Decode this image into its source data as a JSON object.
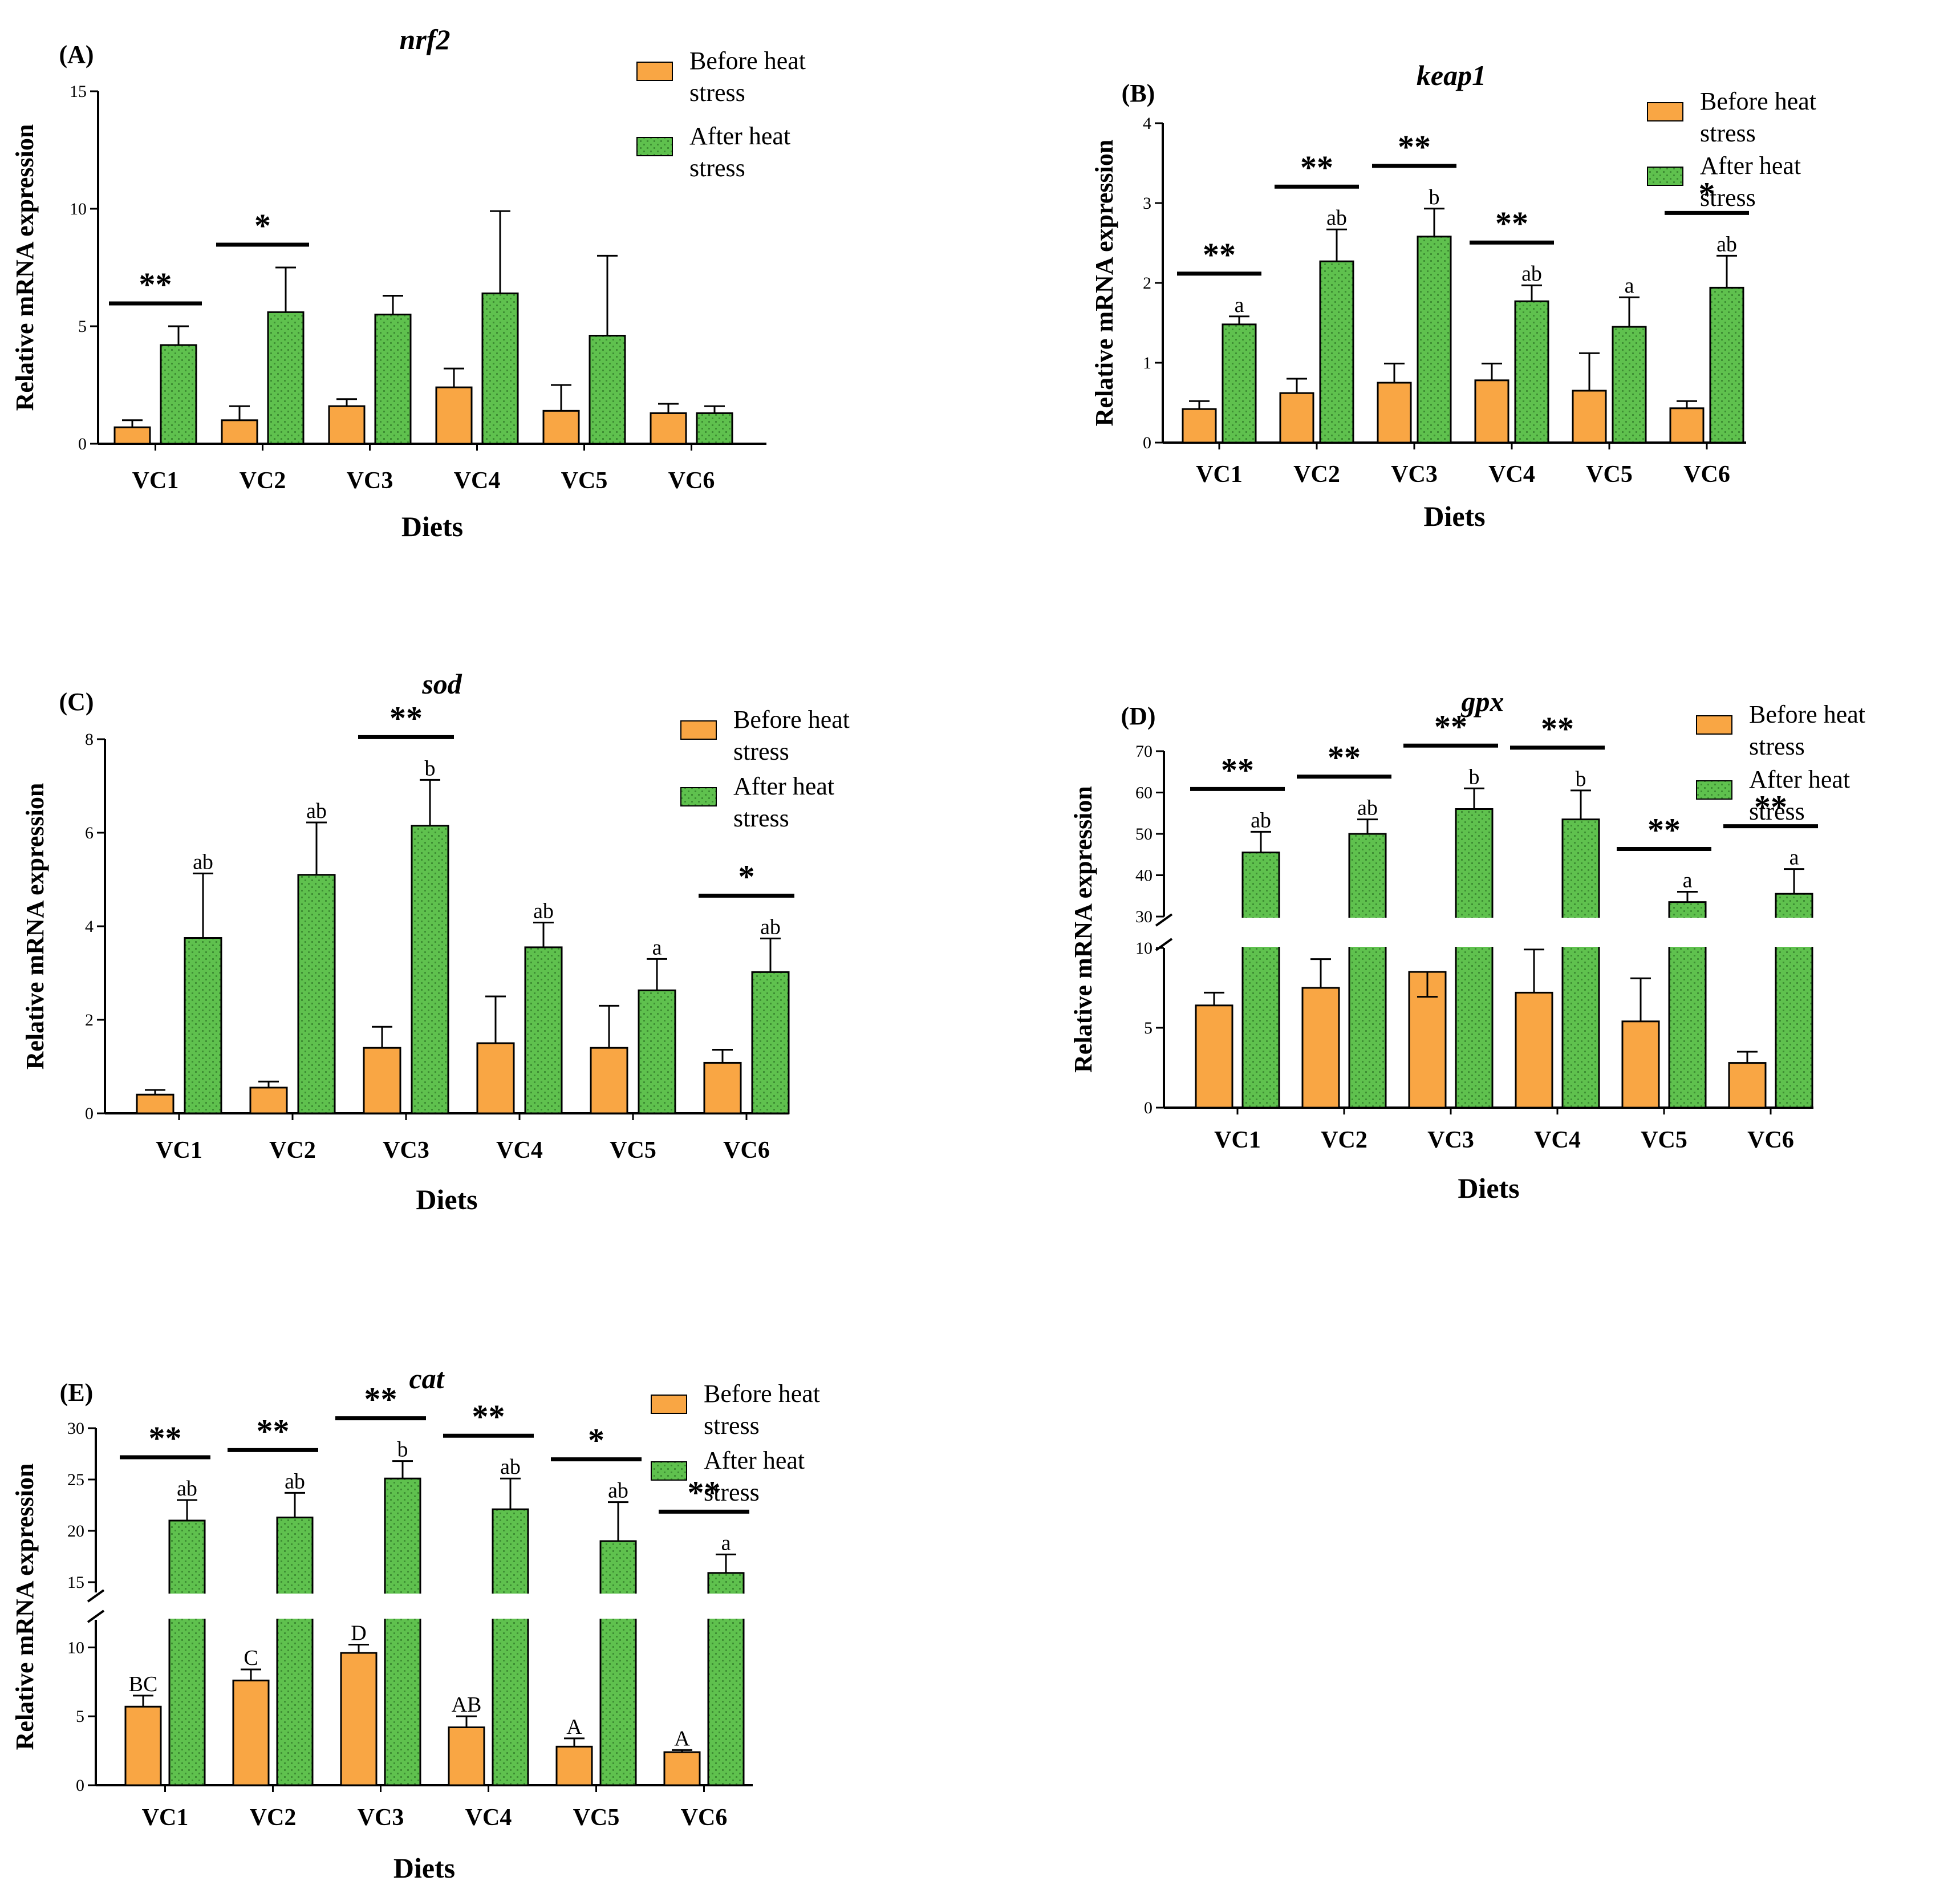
{
  "colors": {
    "before": "#F9A644",
    "after": "#5FC14E",
    "after_pattern": "#3E8E33",
    "axis": "#000000"
  },
  "chart_data": [
    {
      "type": "bar",
      "panel": "(A)",
      "title": "nrf2",
      "xlabel": "Diets",
      "ylabel": "Relative mRNA expression",
      "categories": [
        "VC1",
        "VC2",
        "VC3",
        "VC4",
        "VC5",
        "VC6"
      ],
      "ylim": [
        0,
        15
      ],
      "yticks": [
        0,
        5,
        10,
        15
      ],
      "series": [
        {
          "name": "Before heat stress",
          "values": [
            0.7,
            1.0,
            1.6,
            2.4,
            1.4,
            1.3
          ],
          "errors": [
            0.3,
            0.6,
            0.3,
            0.8,
            1.1,
            0.4
          ],
          "letters": [
            "",
            "",
            "",
            "",
            "",
            ""
          ]
        },
        {
          "name": "After heat stress",
          "values": [
            4.2,
            5.6,
            5.5,
            6.4,
            4.6,
            1.3
          ],
          "errors": [
            0.8,
            1.9,
            0.8,
            3.5,
            3.4,
            0.3
          ],
          "letters": [
            "",
            "",
            "",
            "",
            "",
            ""
          ]
        }
      ],
      "significance": [
        "**",
        "*",
        "",
        "",
        "",
        ""
      ],
      "legend": [
        "Before heat stress",
        "After heat stress"
      ]
    },
    {
      "type": "bar",
      "panel": "(B)",
      "title": "keap1",
      "xlabel": "Diets",
      "ylabel": "Relative mRNA expression",
      "categories": [
        "VC1",
        "VC2",
        "VC3",
        "VC4",
        "VC5",
        "VC6"
      ],
      "ylim": [
        0,
        4
      ],
      "yticks": [
        0,
        1,
        2,
        3,
        4
      ],
      "series": [
        {
          "name": "Before heat stress",
          "values": [
            0.42,
            0.62,
            0.75,
            0.78,
            0.65,
            0.43
          ],
          "errors": [
            0.1,
            0.18,
            0.24,
            0.21,
            0.47,
            0.09
          ],
          "letters": [
            "",
            "",
            "",
            "",
            "",
            ""
          ]
        },
        {
          "name": "After heat stress",
          "values": [
            1.48,
            2.27,
            2.58,
            1.77,
            1.45,
            1.94
          ],
          "errors": [
            0.1,
            0.4,
            0.35,
            0.2,
            0.37,
            0.4
          ],
          "letters": [
            "a",
            "ab",
            "b",
            "ab",
            "a",
            "ab"
          ]
        }
      ],
      "significance": [
        "**",
        "**",
        "**",
        "**",
        "",
        "*"
      ],
      "legend": [
        "Before heat stress",
        "After heat stress"
      ]
    },
    {
      "type": "bar",
      "panel": "(C)",
      "title": "sod",
      "xlabel": "Diets",
      "ylabel": "Relative mRNA expression",
      "categories": [
        "VC1",
        "VC2",
        "VC3",
        "VC4",
        "VC5",
        "VC6"
      ],
      "ylim": [
        0,
        8
      ],
      "yticks": [
        0,
        2,
        4,
        6,
        8
      ],
      "series": [
        {
          "name": "Before heat stress",
          "values": [
            0.4,
            0.55,
            1.4,
            1.5,
            1.4,
            1.08
          ],
          "errors": [
            0.1,
            0.13,
            0.45,
            1.0,
            0.9,
            0.28
          ],
          "letters": [
            "",
            "",
            "",
            "",
            "",
            ""
          ]
        },
        {
          "name": "After heat stress",
          "values": [
            3.75,
            5.1,
            6.15,
            3.55,
            2.63,
            3.02
          ],
          "errors": [
            1.38,
            1.12,
            0.98,
            0.53,
            0.67,
            0.72
          ],
          "letters": [
            "ab",
            "ab",
            "b",
            "ab",
            "a",
            "ab"
          ]
        }
      ],
      "significance": [
        "",
        "",
        "**",
        "",
        "",
        "*"
      ],
      "legend": [
        "Before heat stress",
        "After heat stress"
      ]
    },
    {
      "type": "bar",
      "panel": "(D)",
      "title": "gpx",
      "xlabel": "Diets",
      "ylabel": "Relative mRNA expression",
      "categories": [
        "VC1",
        "VC2",
        "VC3",
        "VC4",
        "VC5",
        "VC6"
      ],
      "axis_break": [
        10,
        30
      ],
      "yticks_lower": [
        0,
        5,
        10
      ],
      "yticks_upper": [
        30,
        40,
        50,
        60,
        70
      ],
      "series": [
        {
          "name": "Before heat stress",
          "values": [
            6.4,
            7.5,
            8.5,
            7.2,
            5.4,
            2.8
          ],
          "errors": [
            0.8,
            1.8,
            2.1,
            2.7,
            2.7,
            0.7
          ],
          "letters": [
            "",
            "",
            "",
            "",
            "",
            ""
          ]
        },
        {
          "name": "After heat stress",
          "values": [
            45.5,
            50.0,
            56.0,
            53.5,
            33.5,
            35.5
          ],
          "errors": [
            5.0,
            3.5,
            5.0,
            7.0,
            2.5,
            6.0
          ],
          "letters": [
            "ab",
            "ab",
            "b",
            "b",
            "a",
            "a"
          ]
        }
      ],
      "significance": [
        "**",
        "**",
        "**",
        "**",
        "**",
        "**"
      ],
      "legend": [
        "Before heat stress",
        "After heat stress"
      ]
    },
    {
      "type": "bar",
      "panel": "(E)",
      "title": "cat",
      "xlabel": "Diets",
      "ylabel": "Relative mRNA expression",
      "categories": [
        "VC1",
        "VC2",
        "VC3",
        "VC4",
        "VC5",
        "VC6"
      ],
      "axis_break": [
        12,
        14
      ],
      "yticks_lower": [
        0,
        5,
        10
      ],
      "yticks_upper": [
        15,
        20,
        25,
        30
      ],
      "series": [
        {
          "name": "Before heat stress",
          "values": [
            5.7,
            7.6,
            9.6,
            4.2,
            2.8,
            2.4
          ],
          "errors": [
            0.8,
            0.8,
            0.6,
            0.8,
            0.6,
            0.15
          ],
          "letters": [
            "BC",
            "C",
            "D",
            "AB",
            "A",
            "A"
          ]
        },
        {
          "name": "After heat stress",
          "values": [
            21.0,
            21.3,
            25.1,
            22.1,
            19.0,
            15.9
          ],
          "errors": [
            2.0,
            2.4,
            1.7,
            3.0,
            3.8,
            1.8
          ],
          "letters": [
            "ab",
            "ab",
            "b",
            "ab",
            "ab",
            "a"
          ]
        }
      ],
      "significance": [
        "**",
        "**",
        "**",
        "**",
        "*",
        "**"
      ],
      "legend": [
        "Before heat stress",
        "After heat stress"
      ]
    }
  ]
}
